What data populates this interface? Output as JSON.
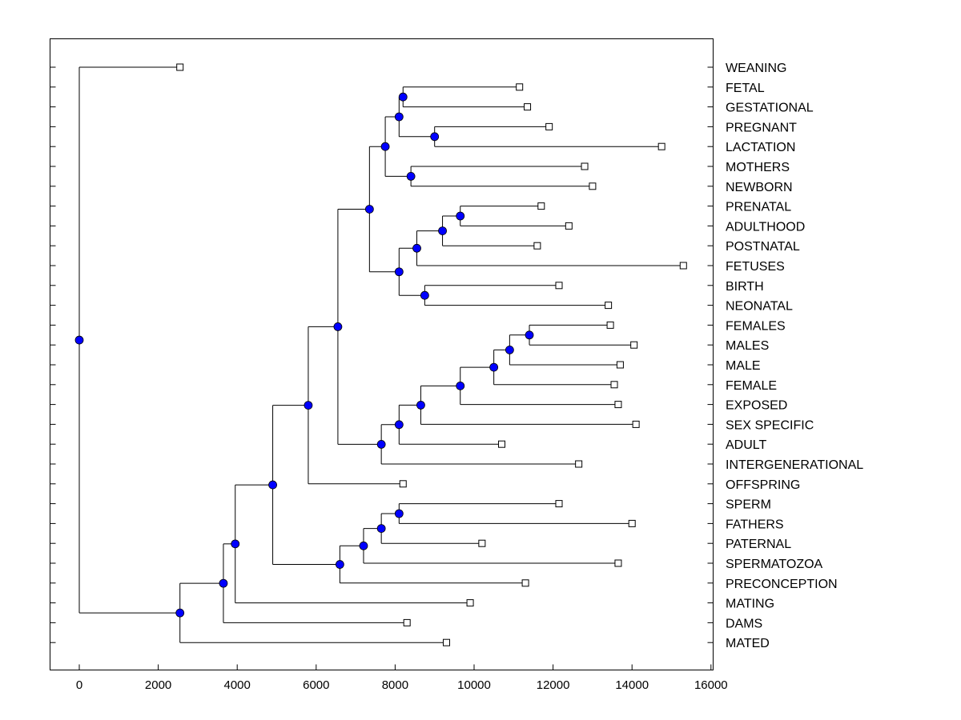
{
  "chart_data": {
    "type": "dendrogram",
    "title": "",
    "xlabel": "",
    "ylabel": "",
    "xlim": [
      -750,
      16000
    ],
    "x_ticks": [
      0,
      2000,
      4000,
      6000,
      8000,
      10000,
      12000,
      14000,
      16000
    ],
    "x_tick_labels": [
      "0",
      "2000",
      "4000",
      "6000",
      "8000",
      "10000",
      "12000",
      "14000",
      "16000"
    ],
    "leaves": [
      {
        "label": "WEANING",
        "value": 2550
      },
      {
        "label": "FETAL",
        "value": 11150
      },
      {
        "label": "GESTATIONAL",
        "value": 11350
      },
      {
        "label": "PREGNANT",
        "value": 11900
      },
      {
        "label": "LACTATION",
        "value": 14750
      },
      {
        "label": "MOTHERS",
        "value": 12800
      },
      {
        "label": "NEWBORN",
        "value": 13000
      },
      {
        "label": "PRENATAL",
        "value": 11700
      },
      {
        "label": "ADULTHOOD",
        "value": 12400
      },
      {
        "label": "POSTNATAL",
        "value": 11600
      },
      {
        "label": "FETUSES",
        "value": 15300
      },
      {
        "label": "BIRTH",
        "value": 12150
      },
      {
        "label": "NEONATAL",
        "value": 13400
      },
      {
        "label": "FEMALES",
        "value": 13450
      },
      {
        "label": "MALES",
        "value": 14050
      },
      {
        "label": "MALE",
        "value": 13700
      },
      {
        "label": "FEMALE",
        "value": 13550
      },
      {
        "label": "EXPOSED",
        "value": 13650
      },
      {
        "label": "SEX SPECIFIC",
        "value": 14100
      },
      {
        "label": "ADULT",
        "value": 10700
      },
      {
        "label": "INTERGENERATIONAL",
        "value": 12650
      },
      {
        "label": "OFFSPRING",
        "value": 8200
      },
      {
        "label": "SPERM",
        "value": 12150
      },
      {
        "label": "FATHERS",
        "value": 14000
      },
      {
        "label": "PATERNAL",
        "value": 10200
      },
      {
        "label": "SPERMATOZOA",
        "value": 13650
      },
      {
        "label": "PRECONCEPTION",
        "value": 11300
      },
      {
        "label": "MATING",
        "value": 9900
      },
      {
        "label": "DAMS",
        "value": 8300
      },
      {
        "label": "MATED",
        "value": 9300
      }
    ],
    "nodes": [
      {
        "id": "n1",
        "value": 8200,
        "children": [
          1,
          2
        ]
      },
      {
        "id": "n2",
        "value": 9000,
        "children": [
          3,
          4
        ]
      },
      {
        "id": "n3",
        "value": 8100,
        "children": [
          "n1",
          "n2"
        ]
      },
      {
        "id": "n4",
        "value": 8400,
        "children": [
          5,
          6
        ]
      },
      {
        "id": "n5",
        "value": 7750,
        "children": [
          "n3",
          "n4"
        ]
      },
      {
        "id": "n6",
        "value": 9650,
        "children": [
          7,
          8
        ]
      },
      {
        "id": "n7",
        "value": 9200,
        "children": [
          "n6",
          9
        ]
      },
      {
        "id": "n8",
        "value": 8550,
        "children": [
          "n7",
          10
        ]
      },
      {
        "id": "n9",
        "value": 8750,
        "children": [
          11,
          12
        ]
      },
      {
        "id": "n10",
        "value": 8100,
        "children": [
          "n8",
          "n9"
        ]
      },
      {
        "id": "n11",
        "value": 7350,
        "children": [
          "n5",
          "n10"
        ]
      },
      {
        "id": "n12",
        "value": 11400,
        "children": [
          13,
          14
        ]
      },
      {
        "id": "n13",
        "value": 10900,
        "children": [
          "n12",
          15
        ]
      },
      {
        "id": "n14",
        "value": 10500,
        "children": [
          "n13",
          16
        ]
      },
      {
        "id": "n15",
        "value": 9650,
        "children": [
          "n14",
          17
        ]
      },
      {
        "id": "n16",
        "value": 8650,
        "children": [
          "n15",
          18
        ]
      },
      {
        "id": "n17",
        "value": 8100,
        "children": [
          "n16",
          19
        ]
      },
      {
        "id": "n18",
        "value": 7650,
        "children": [
          "n17",
          20
        ]
      },
      {
        "id": "n19",
        "value": 6550,
        "children": [
          "n11",
          "n18"
        ]
      },
      {
        "id": "n20",
        "value": 5800,
        "children": [
          "n19",
          21
        ]
      },
      {
        "id": "n21",
        "value": 8100,
        "children": [
          22,
          23
        ]
      },
      {
        "id": "n22",
        "value": 7650,
        "children": [
          "n21",
          24
        ]
      },
      {
        "id": "n23",
        "value": 7200,
        "children": [
          "n22",
          25
        ]
      },
      {
        "id": "n24",
        "value": 6600,
        "children": [
          "n23",
          26
        ]
      },
      {
        "id": "n25",
        "value": 4900,
        "children": [
          "n20",
          "n24"
        ]
      },
      {
        "id": "n26",
        "value": 3950,
        "children": [
          "n25",
          27
        ]
      },
      {
        "id": "n27",
        "value": 3650,
        "children": [
          "n26",
          28
        ]
      },
      {
        "id": "n28",
        "value": 2550,
        "children": [
          "n27",
          29
        ]
      },
      {
        "id": "root",
        "value": 0,
        "children": [
          0,
          "n28"
        ]
      }
    ],
    "colors": {
      "node_fill": "#0000ff",
      "leaf_fill": "#ffffff",
      "line": "#000000"
    }
  }
}
